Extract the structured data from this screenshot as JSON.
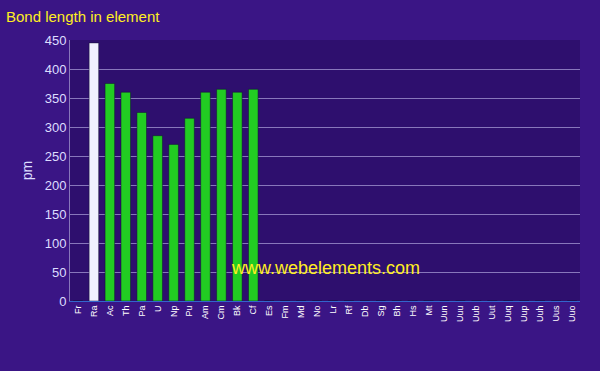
{
  "chart_data": {
    "type": "bar",
    "title": "Bond length in element",
    "y_label": "pm",
    "annotation": "www.webelements.com",
    "categories": [
      "Fr",
      "Ra",
      "Ac",
      "Th",
      "Pa",
      "U",
      "Np",
      "Pu",
      "Am",
      "Cm",
      "Bk",
      "Cf",
      "Es",
      "Fm",
      "Md",
      "No",
      "Lr",
      "Rf",
      "Db",
      "Sg",
      "Bh",
      "Hs",
      "Mt",
      "Uun",
      "Uuu",
      "Uub",
      "Uut",
      "Uuq",
      "Uup",
      "Uuh",
      "Uus",
      "Uuo"
    ],
    "values": [
      0,
      445,
      375,
      360,
      325,
      285,
      270,
      315,
      360,
      365,
      360,
      365,
      0,
      0,
      0,
      0,
      0,
      0,
      0,
      0,
      0,
      0,
      0,
      0,
      0,
      0,
      0,
      0,
      0,
      0,
      0,
      0
    ],
    "colors": [
      "#f0f0ff",
      "#f0f0ff",
      "#22cc22",
      "#22cc22",
      "#22cc22",
      "#22cc22",
      "#22cc22",
      "#22cc22",
      "#22cc22",
      "#22cc22",
      "#22cc22",
      "#22cc22",
      "#22cc22",
      "#22cc22",
      "#22cc22",
      "#22cc22",
      "#22cc22",
      "#dd1111",
      "#dd1111",
      "#dd1111",
      "#dd1111",
      "#dd1111",
      "#dd1111",
      "#dd1111",
      "#dd1111",
      "#eedd22",
      "#555566",
      "#555566",
      "#555566",
      "#555566",
      "#555566",
      "#555566"
    ],
    "ylim": [
      0,
      450
    ],
    "yticks": [
      0,
      50,
      100,
      150,
      200,
      250,
      300,
      350,
      400,
      450
    ],
    "grid": true
  }
}
